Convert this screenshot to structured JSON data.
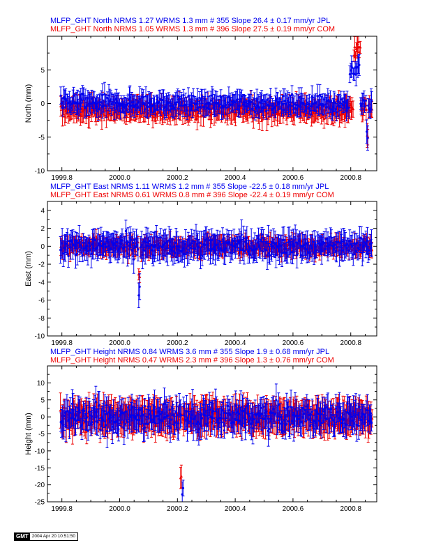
{
  "colors": {
    "jpl": "#0000ee",
    "com": "#ee0000",
    "axis": "#000000"
  },
  "footer": {
    "logo_text": "GMT",
    "timestamp": "2004 Apr 20 10:51:50"
  },
  "chart_data": [
    {
      "type": "scatter",
      "panel": "north",
      "title_lines": [
        {
          "text": "MLFP_GHT North NRMS 1.27 WRMS  1.3 mm # 355 Slope  26.4 ±  0.17 mm/yr JPL",
          "color": "#0000ee"
        },
        {
          "text": "MLFP_GHT North NRMS 1.05 WRMS  1.3 mm # 396 Slope  27.5 ±  0.19 mm/yr COM",
          "color": "#ee0000"
        }
      ],
      "ylabel": "North (mm)",
      "xlim": [
        1999.75,
        2000.89
      ],
      "ylim": [
        -10,
        10
      ],
      "yticks": [
        -10,
        -5,
        0,
        5
      ],
      "xticks": [
        "1999.8",
        "2000.0",
        "2000.2",
        "2000.4",
        "2000.6",
        "2000.8"
      ],
      "series": [
        {
          "name": "JPL",
          "count": 355,
          "color": "#0000ee",
          "base": 0,
          "noise": 1.0,
          "err": 1.3,
          "events": [
            {
              "x0": 2000.795,
              "x1": 2000.83,
              "value": 5
            },
            {
              "x0": 2000.855,
              "x1": 2000.86,
              "value": -5
            }
          ]
        },
        {
          "name": "COM",
          "count": 396,
          "color": "#ee0000",
          "base": -1,
          "noise": 1.0,
          "err": 1.3,
          "events": [
            {
              "x0": 2000.81,
              "x1": 2000.835,
              "value": 8
            },
            {
              "x0": 2000.855,
              "x1": 2000.86,
              "value": -5
            }
          ]
        }
      ]
    },
    {
      "type": "scatter",
      "panel": "east",
      "title_lines": [
        {
          "text": "MLFP_GHT East NRMS 1.11 WRMS  1.2 mm # 355 Slope  -22.5 ±  0.18 mm/yr JPL",
          "color": "#0000ee"
        },
        {
          "text": "MLFP_GHT East NRMS 0.61 WRMS  0.8 mm # 396 Slope  -22.4 ±  0.19 mm/yr COM",
          "color": "#ee0000"
        }
      ],
      "ylabel": "East (mm)",
      "xlim": [
        1999.75,
        2000.89
      ],
      "ylim": [
        -10,
        5
      ],
      "yticks": [
        -10,
        -8,
        -6,
        -4,
        -2,
        0,
        2,
        4
      ],
      "xticks": [
        "1999.8",
        "2000.0",
        "2000.2",
        "2000.4",
        "2000.6",
        "2000.8"
      ],
      "series": [
        {
          "name": "JPL",
          "count": 355,
          "color": "#0000ee",
          "base": 0,
          "noise": 1.0,
          "err": 1.2,
          "events": [
            {
              "x0": 2000.065,
              "x1": 2000.07,
              "value": -5
            }
          ]
        },
        {
          "name": "COM",
          "count": 396,
          "color": "#ee0000",
          "base": 0,
          "noise": 0.6,
          "err": 0.8,
          "events": [
            {
              "x0": 2000.065,
              "x1": 2000.07,
              "value": -3
            }
          ]
        }
      ]
    },
    {
      "type": "scatter",
      "panel": "height",
      "title_lines": [
        {
          "text": "MLFP_GHT Height NRMS 0.84 WRMS  3.6 mm # 355 Slope    1.9 ±  0.68 mm/yr JPL",
          "color": "#0000ee"
        },
        {
          "text": "MLFP_GHT Height NRMS 0.47 WRMS  2.3 mm # 396 Slope    1.3 ±  0.76 mm/yr COM",
          "color": "#ee0000"
        }
      ],
      "ylabel": "Height (mm)",
      "xlim": [
        1999.75,
        2000.89
      ],
      "ylim": [
        -25,
        15
      ],
      "yticks": [
        -25,
        -20,
        -15,
        -10,
        -5,
        0,
        5,
        10
      ],
      "xticks": [
        "1999.8",
        "2000.0",
        "2000.2",
        "2000.4",
        "2000.6",
        "2000.8"
      ],
      "series": [
        {
          "name": "JPL",
          "count": 355,
          "color": "#0000ee",
          "base": 0,
          "noise": 3.3,
          "err": 3.6,
          "events": [
            {
              "x0": 2000.215,
              "x1": 2000.22,
              "value": -22
            }
          ]
        },
        {
          "name": "COM",
          "count": 396,
          "color": "#ee0000",
          "base": 0,
          "noise": 2.3,
          "err": 4.0,
          "events": [
            {
              "x0": 2000.21,
              "x1": 2000.215,
              "value": -18
            }
          ]
        }
      ]
    }
  ]
}
